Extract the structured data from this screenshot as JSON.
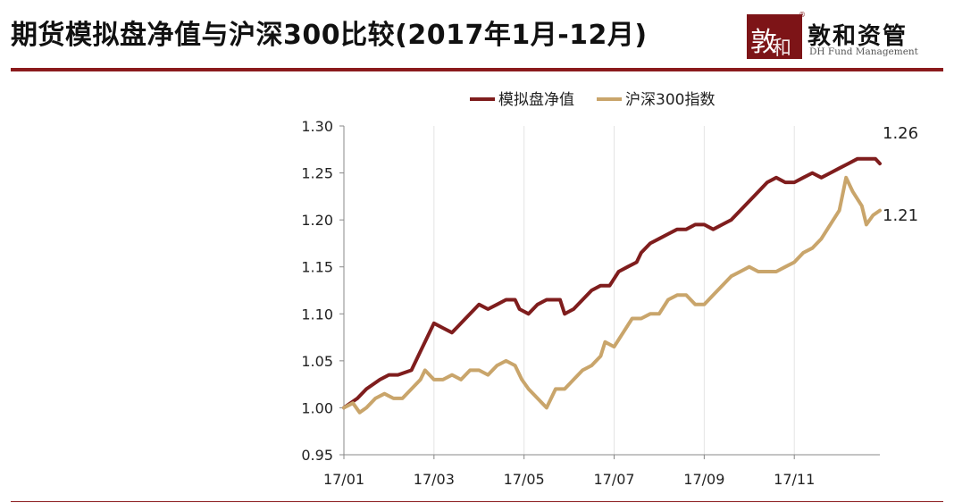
{
  "title": "期货模拟盘净值与沪深300比较(2017年1月-12月)",
  "logo": {
    "mark_glyph_1": "敦",
    "mark_glyph_2": "和",
    "registered": "®",
    "name": "敦和资管",
    "subtitle": "DH Fund Management"
  },
  "colors": {
    "series_1": "#7f1d1d",
    "series_2": "#c9a56b",
    "accent": "#8b1a1c"
  },
  "chart_data": {
    "type": "line",
    "title": "",
    "xlabel": "",
    "ylabel": "",
    "ylim": [
      0.95,
      1.3
    ],
    "yticks": [
      "0.95",
      "1.00",
      "1.05",
      "1.10",
      "1.15",
      "1.20",
      "1.25",
      "1.30"
    ],
    "xticks": [
      "17/01",
      "17/03",
      "17/05",
      "17/07",
      "17/09",
      "17/11"
    ],
    "x_range_months": [
      0,
      11.9
    ],
    "grid": "vertical",
    "legend_position": "top",
    "end_labels": [
      "1.26",
      "1.21"
    ],
    "series": [
      {
        "name": "模拟盘净值",
        "color": "#7f1d1d",
        "points": [
          [
            0.0,
            1.0
          ],
          [
            0.3,
            1.01
          ],
          [
            0.5,
            1.02
          ],
          [
            0.8,
            1.03
          ],
          [
            1.0,
            1.035
          ],
          [
            1.2,
            1.035
          ],
          [
            1.5,
            1.04
          ],
          [
            1.7,
            1.06
          ],
          [
            1.9,
            1.08
          ],
          [
            2.0,
            1.09
          ],
          [
            2.2,
            1.085
          ],
          [
            2.4,
            1.08
          ],
          [
            2.6,
            1.09
          ],
          [
            2.8,
            1.1
          ],
          [
            3.0,
            1.11
          ],
          [
            3.2,
            1.105
          ],
          [
            3.4,
            1.11
          ],
          [
            3.6,
            1.115
          ],
          [
            3.8,
            1.115
          ],
          [
            3.9,
            1.105
          ],
          [
            4.1,
            1.1
          ],
          [
            4.3,
            1.11
          ],
          [
            4.5,
            1.115
          ],
          [
            4.8,
            1.115
          ],
          [
            4.9,
            1.1
          ],
          [
            5.1,
            1.105
          ],
          [
            5.3,
            1.115
          ],
          [
            5.5,
            1.125
          ],
          [
            5.7,
            1.13
          ],
          [
            5.9,
            1.13
          ],
          [
            6.1,
            1.145
          ],
          [
            6.3,
            1.15
          ],
          [
            6.5,
            1.155
          ],
          [
            6.6,
            1.165
          ],
          [
            6.8,
            1.175
          ],
          [
            7.0,
            1.18
          ],
          [
            7.2,
            1.185
          ],
          [
            7.4,
            1.19
          ],
          [
            7.6,
            1.19
          ],
          [
            7.8,
            1.195
          ],
          [
            8.0,
            1.195
          ],
          [
            8.2,
            1.19
          ],
          [
            8.4,
            1.195
          ],
          [
            8.6,
            1.2
          ],
          [
            8.8,
            1.21
          ],
          [
            9.0,
            1.22
          ],
          [
            9.2,
            1.23
          ],
          [
            9.4,
            1.24
          ],
          [
            9.6,
            1.245
          ],
          [
            9.8,
            1.24
          ],
          [
            10.0,
            1.24
          ],
          [
            10.2,
            1.245
          ],
          [
            10.4,
            1.25
          ],
          [
            10.6,
            1.245
          ],
          [
            10.8,
            1.25
          ],
          [
            11.0,
            1.255
          ],
          [
            11.2,
            1.26
          ],
          [
            11.4,
            1.265
          ],
          [
            11.6,
            1.265
          ],
          [
            11.8,
            1.265
          ],
          [
            11.9,
            1.26
          ]
        ]
      },
      {
        "name": "沪深300指数",
        "color": "#c9a56b",
        "points": [
          [
            0.0,
            1.0
          ],
          [
            0.2,
            1.005
          ],
          [
            0.35,
            0.995
          ],
          [
            0.5,
            1.0
          ],
          [
            0.7,
            1.01
          ],
          [
            0.9,
            1.015
          ],
          [
            1.1,
            1.01
          ],
          [
            1.3,
            1.01
          ],
          [
            1.5,
            1.02
          ],
          [
            1.7,
            1.03
          ],
          [
            1.8,
            1.04
          ],
          [
            2.0,
            1.03
          ],
          [
            2.2,
            1.03
          ],
          [
            2.4,
            1.035
          ],
          [
            2.6,
            1.03
          ],
          [
            2.8,
            1.04
          ],
          [
            3.0,
            1.04
          ],
          [
            3.2,
            1.035
          ],
          [
            3.4,
            1.045
          ],
          [
            3.6,
            1.05
          ],
          [
            3.8,
            1.045
          ],
          [
            3.95,
            1.03
          ],
          [
            4.1,
            1.02
          ],
          [
            4.3,
            1.01
          ],
          [
            4.5,
            1.0
          ],
          [
            4.7,
            1.02
          ],
          [
            4.9,
            1.02
          ],
          [
            5.1,
            1.03
          ],
          [
            5.3,
            1.04
          ],
          [
            5.5,
            1.045
          ],
          [
            5.7,
            1.055
          ],
          [
            5.8,
            1.07
          ],
          [
            6.0,
            1.065
          ],
          [
            6.2,
            1.08
          ],
          [
            6.4,
            1.095
          ],
          [
            6.6,
            1.095
          ],
          [
            6.8,
            1.1
          ],
          [
            7.0,
            1.1
          ],
          [
            7.2,
            1.115
          ],
          [
            7.4,
            1.12
          ],
          [
            7.6,
            1.12
          ],
          [
            7.8,
            1.11
          ],
          [
            8.0,
            1.11
          ],
          [
            8.2,
            1.12
          ],
          [
            8.4,
            1.13
          ],
          [
            8.6,
            1.14
          ],
          [
            8.8,
            1.145
          ],
          [
            9.0,
            1.15
          ],
          [
            9.2,
            1.145
          ],
          [
            9.4,
            1.145
          ],
          [
            9.6,
            1.145
          ],
          [
            9.8,
            1.15
          ],
          [
            10.0,
            1.155
          ],
          [
            10.2,
            1.165
          ],
          [
            10.4,
            1.17
          ],
          [
            10.6,
            1.18
          ],
          [
            10.8,
            1.195
          ],
          [
            11.0,
            1.21
          ],
          [
            11.15,
            1.245
          ],
          [
            11.3,
            1.23
          ],
          [
            11.5,
            1.215
          ],
          [
            11.6,
            1.195
          ],
          [
            11.75,
            1.205
          ],
          [
            11.9,
            1.21
          ]
        ]
      }
    ]
  }
}
